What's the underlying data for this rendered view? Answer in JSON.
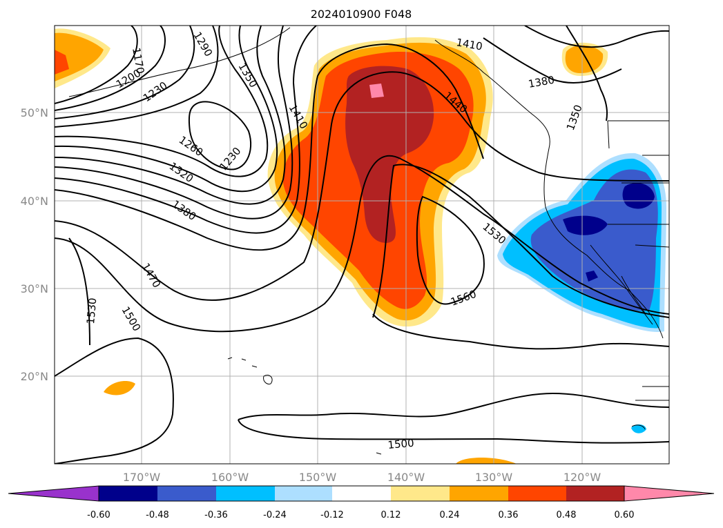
{
  "title": "2024010900 F048",
  "lat_labels": [
    "50°N",
    "40°N",
    "30°N",
    "20°N"
  ],
  "lon_labels": [
    "170°W",
    "160°W",
    "150°W",
    "140°W",
    "130°W",
    "120°W"
  ],
  "contour_labels": [
    "1170",
    "1200",
    "1230",
    "1290",
    "1350",
    "1410",
    "1440",
    "1410",
    "1380",
    "1350",
    "1260",
    "1230",
    "1320",
    "1380",
    "1470",
    "1530",
    "1500",
    "1530",
    "1560",
    "1500"
  ],
  "colorbar": {
    "ticks": [
      "-0.60",
      "-0.48",
      "-0.36",
      "-0.24",
      "-0.12",
      "0.12",
      "0.24",
      "0.36",
      "0.48",
      "0.60"
    ],
    "colors": [
      "#9932cc",
      "#00008b",
      "#3a5bcc",
      "#00bfff",
      "#addfff",
      "#ffffff",
      "#ffe88a",
      "#ffa500",
      "#ff4500",
      "#b22222",
      "#ff88aa"
    ]
  },
  "colors": {
    "pos1": "#ffe88a",
    "pos2": "#ffa500",
    "pos3": "#ff4500",
    "pos4": "#b22222",
    "pos5": "#ff88aa",
    "neg1": "#addfff",
    "neg2": "#00bfff",
    "neg3": "#3a5bcc",
    "neg4": "#00008b"
  }
}
